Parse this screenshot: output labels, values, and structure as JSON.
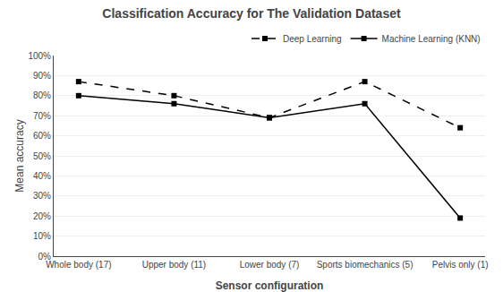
{
  "chart_data": {
    "type": "line",
    "title": "Classification Accuracy for The Validation Dataset",
    "xlabel": "Sensor configuration",
    "ylabel": "Mean accuracy",
    "categories": [
      "Whole body (17)",
      "Upper body (11)",
      "Lower body (7)",
      "Sports biomechanics (5)",
      "Pelvis only (1)"
    ],
    "series": [
      {
        "name": "Deep Learning",
        "color": "#000000",
        "marker": "square",
        "line_style": "dashed",
        "values": [
          0.87,
          0.8,
          0.69,
          0.87,
          0.64
        ]
      },
      {
        "name": "Machine Learning (KNN)",
        "color": "#000000",
        "marker": "square",
        "line_style": "solid",
        "values": [
          0.8,
          0.76,
          0.69,
          0.76,
          0.19
        ]
      }
    ],
    "ylim": [
      0,
      1.0
    ],
    "yticks": [
      {
        "value": 0.0,
        "label": "0%"
      },
      {
        "value": 0.1,
        "label": "10%"
      },
      {
        "value": 0.2,
        "label": "20%"
      },
      {
        "value": 0.3,
        "label": "30%"
      },
      {
        "value": 0.4,
        "label": "40%"
      },
      {
        "value": 0.5,
        "label": "50%"
      },
      {
        "value": 0.6,
        "label": "60%"
      },
      {
        "value": 0.7,
        "label": "70%"
      },
      {
        "value": 0.8,
        "label": "80%"
      },
      {
        "value": 0.9,
        "label": "90%"
      },
      {
        "value": 1.0,
        "label": "100%"
      }
    ],
    "grid": "y",
    "legend": "upper right"
  }
}
